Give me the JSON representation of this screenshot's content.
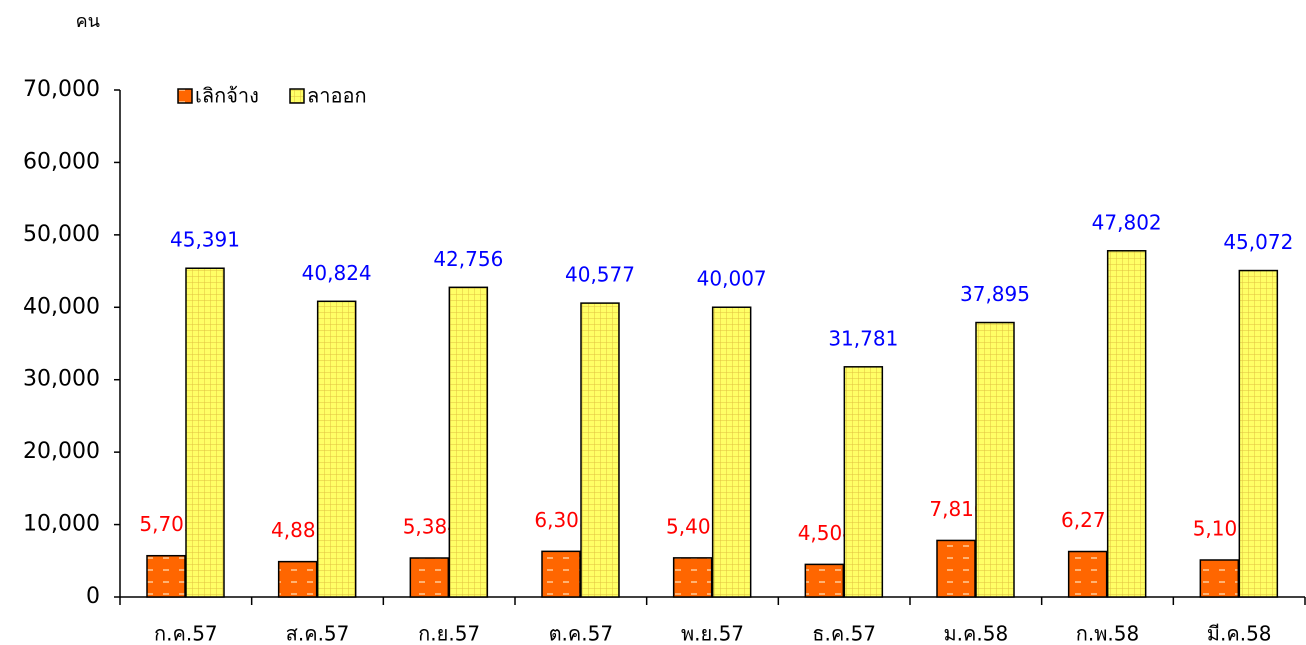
{
  "chart_data": {
    "type": "bar",
    "y_axis_label": "คน",
    "categories": [
      "ก.ค.57",
      "ส.ค.57",
      "ก.ย.57",
      "ต.ค.57",
      "พ.ย.57",
      "ธ.ค.57",
      "ม.ค.58",
      "ก.พ.58",
      "มี.ค.58"
    ],
    "series": [
      {
        "name": "เลิกจ้าง",
        "color": "#ff6600",
        "label_color": "#ff0000",
        "values": [
          5702,
          4882,
          5384,
          6303,
          5402,
          4504,
          7810,
          6279,
          5109
        ],
        "value_labels": [
          "5,702",
          "4,882",
          "5,384",
          "6,303",
          "5,402",
          "4,504",
          "7,810",
          "6,279",
          "5,109"
        ]
      },
      {
        "name": "ลาออก",
        "color": "#ffff66",
        "label_color": "#0000ff",
        "values": [
          45391,
          40824,
          42756,
          40577,
          40007,
          31781,
          37895,
          47802,
          45072
        ],
        "value_labels": [
          "45,391",
          "40,824",
          "42,756",
          "40,577",
          "40,007",
          "31,781",
          "37,895",
          "47,802",
          "45,072"
        ]
      }
    ],
    "ylim": [
      0,
      70000
    ],
    "yticks": [
      0,
      {
        "value": 10000,
        "label": "10,000"
      },
      {
        "value": 20000,
        "label": "20,000"
      },
      {
        "value": 30000,
        "label": "30,000"
      },
      {
        "value": 40000,
        "label": "40,000"
      },
      {
        "value": 50000,
        "label": "50,000"
      },
      {
        "value": 60000,
        "label": "60,000"
      },
      {
        "value": 70000,
        "label": "70,000"
      }
    ],
    "legend": "top-left"
  }
}
